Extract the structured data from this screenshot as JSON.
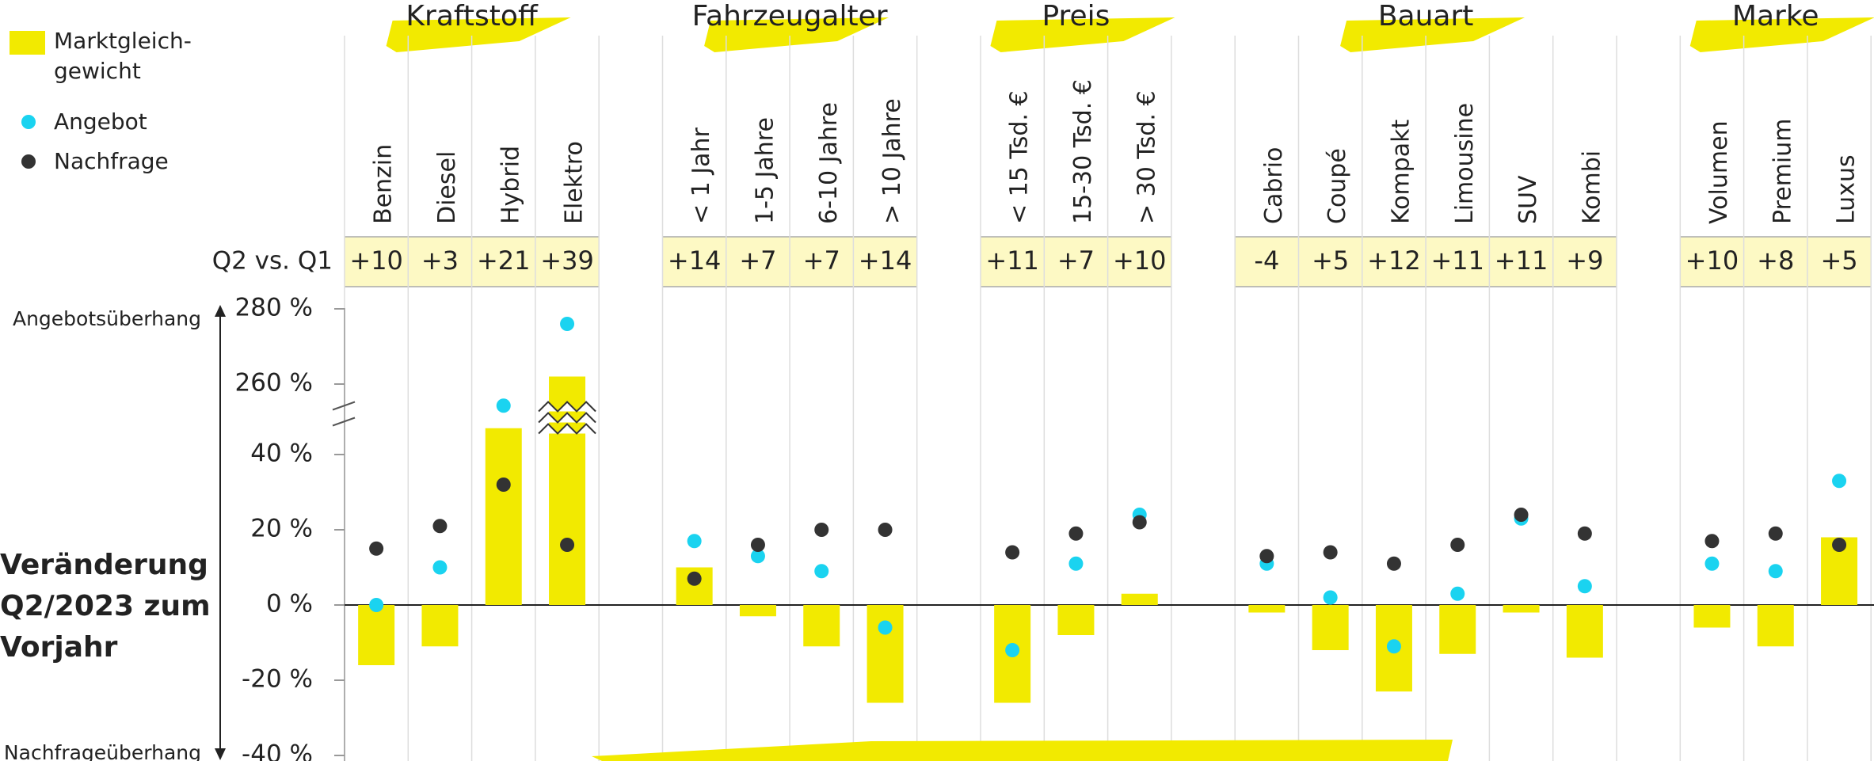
{
  "chart_data": {
    "type": "bar",
    "title": "Veränderung Q2/2023 zum Vorjahr",
    "y_label_top": "Angebotsüberhang",
    "y_label_bottom": "Nachfrageüberhang",
    "change_label": "Q2 vs. Q1",
    "groups": [
      {
        "name": "Kraftstoff",
        "categories": [
          "Benzin",
          "Diesel",
          "Hybrid",
          "Elektro"
        ]
      },
      {
        "name": "Fahrzeugalter",
        "categories": [
          "< 1 Jahr",
          "1-5 Jahre",
          "6-10 Jahre",
          "> 10 Jahre"
        ]
      },
      {
        "name": "Preis",
        "categories": [
          "< 15 Tsd. €",
          "15-30 Tsd. €",
          "> 30 Tsd. €"
        ]
      },
      {
        "name": "Bauart",
        "categories": [
          "Cabrio",
          "Coupé",
          "Kompakt",
          "Limousine",
          "SUV",
          "Kombi"
        ]
      },
      {
        "name": "Marke",
        "categories": [
          "Volumen",
          "Premium",
          "Luxus"
        ]
      }
    ],
    "changes": [
      "+10",
      "+3",
      "+21",
      "+39",
      "+14",
      "+7",
      "+7",
      "+14",
      "+11",
      "+7",
      "+10",
      "-4",
      "+5",
      "+12",
      "+11",
      "+11",
      "+9",
      "+10",
      "+8",
      "+5"
    ],
    "series": [
      {
        "name": "Marktgleich-gewicht",
        "type": "bar",
        "color": "#f2ea00",
        "values": [
          -16,
          -11,
          47,
          262,
          10,
          -3,
          -11,
          -26,
          -26,
          -8,
          3,
          -2,
          -12,
          -23,
          -13,
          -2,
          -14,
          -6,
          -11,
          18
        ]
      },
      {
        "name": "Angebot",
        "type": "scatter",
        "color": "#1ad3f0",
        "values": [
          0,
          10,
          53,
          276,
          17,
          13,
          9,
          -6,
          -12,
          11,
          24,
          11,
          2,
          -11,
          3,
          23,
          5,
          11,
          9,
          33
        ]
      },
      {
        "name": "Nachfrage",
        "type": "scatter",
        "color": "#333333",
        "values": [
          15,
          21,
          32,
          16,
          7,
          16,
          20,
          20,
          14,
          19,
          22,
          13,
          14,
          11,
          16,
          24,
          19,
          17,
          19,
          16
        ]
      }
    ],
    "ylim": [
      -40,
      280
    ],
    "axis_break": [
      40,
      260
    ],
    "yticks": [
      {
        "value": 280,
        "label": "280 %"
      },
      {
        "value": 260,
        "label": "260 %"
      },
      {
        "value": 40,
        "label": "40 %"
      },
      {
        "value": 20,
        "label": "20 %"
      },
      {
        "value": 0,
        "label": "0 %"
      },
      {
        "value": -20,
        "label": "-20 %"
      },
      {
        "value": -40,
        "label": "-40 %"
      }
    ]
  }
}
